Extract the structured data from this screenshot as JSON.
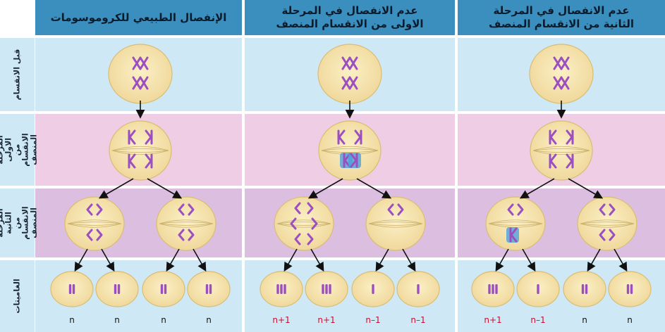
{
  "columns": [
    {
      "title_line1": "الإنفصال الطبيعي للكروموسومات",
      "title_line2": ""
    },
    {
      "title_line1": "عدم الانفصال في المرحلة",
      "title_line2": "الاولى من الانقسام المنصف"
    },
    {
      "title_line1": "عدم الانفصال في المرحلة",
      "title_line2": "الثانية من الانقسام المنصف"
    }
  ],
  "rows": [
    {
      "label": "قبل الانقسام"
    },
    {
      "label": "المرحلة الاولى من الانقسام المنصف"
    },
    {
      "label": "المرحلة الثانية من الانقسام المنصف"
    },
    {
      "label": "الغاميتات"
    }
  ],
  "gametes": [
    [
      "n",
      "n",
      "n",
      "n"
    ],
    [
      "n+1",
      "n+1",
      "n–1",
      "n–1"
    ],
    [
      "n+1",
      "n–1",
      "n",
      "n"
    ]
  ],
  "colors": {
    "header": "#3a8fbf",
    "row_blue": "#cfe8f5",
    "row_pink": "#eecde5",
    "row_mauve": "#dcbfe0",
    "cell": "#f4e2a6",
    "chromosome": "#9b4fc0",
    "highlight": "#4fa0dd",
    "aneuploid_label": "#c8102e"
  }
}
